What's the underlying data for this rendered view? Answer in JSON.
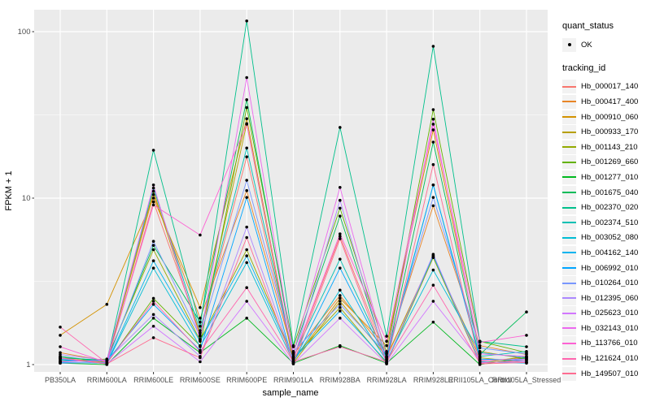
{
  "chart_data": {
    "type": "line",
    "title": "",
    "xlabel": "sample_name",
    "ylabel": "FPKM + 1",
    "yscale": "log10",
    "panel_bg": "#EBEBEB",
    "grid_color": "#FFFFFF",
    "tick_label_color": "#4D4D4D",
    "point_color": "#000000",
    "ylim": [
      0.9,
      135
    ],
    "yticks": [
      {
        "v": 1,
        "label": "1"
      },
      {
        "v": 10,
        "label": "10"
      },
      {
        "v": 100,
        "label": "100"
      }
    ],
    "minor_ticks": [
      3.1623,
      31.6228
    ],
    "categories": [
      "PB350LA",
      "RRIM600LA",
      "RRIM600LE",
      "RRIM600SE",
      "RRIM600PE",
      "RRIM901LA",
      "RRIM928BA",
      "RRIM928LA",
      "RRIM928LE",
      "RRII105LA_Control",
      "RRII105LA_Stressed"
    ],
    "legend": {
      "quant_status_title": "quant_status",
      "quant_status_items": [
        {
          "label": "OK",
          "symbol": "point"
        }
      ],
      "tracking_title": "tracking_id"
    },
    "series": [
      {
        "id": "Hb_000017_140",
        "color": "#F8766D",
        "values": [
          1.1,
          1.02,
          9.5,
          1.55,
          17.7,
          1.08,
          5.9,
          1.1,
          4.5,
          1.05,
          1.1
        ]
      },
      {
        "id": "Hb_000417_400",
        "color": "#E88526",
        "values": [
          1.18,
          1.05,
          10.5,
          1.9,
          11.1,
          1.15,
          2.6,
          1.2,
          9.0,
          1.3,
          1.15
        ]
      },
      {
        "id": "Hb_000910_060",
        "color": "#D39200",
        "values": [
          1.5,
          2.3,
          10.0,
          2.2,
          30.0,
          1.05,
          2.5,
          1.3,
          25.7,
          1.2,
          1.08
        ]
      },
      {
        "id": "Hb_000933_170",
        "color": "#B79F00",
        "values": [
          1.12,
          1.03,
          11.0,
          1.5,
          28.0,
          1.02,
          2.4,
          1.12,
          4.4,
          1.1,
          1.03
        ]
      },
      {
        "id": "Hb_001143_210",
        "color": "#93AA00",
        "values": [
          1.05,
          1.08,
          4.9,
          1.4,
          4.9,
          1.1,
          2.2,
          1.02,
          4.4,
          1.02,
          1.12
        ]
      },
      {
        "id": "Hb_001269_660",
        "color": "#64B200",
        "values": [
          1.08,
          1.02,
          2.5,
          1.3,
          35.0,
          1.28,
          8.7,
          1.18,
          34.0,
          1.38,
          1.18
        ]
      },
      {
        "id": "Hb_001277_010",
        "color": "#00B81F",
        "values": [
          1.02,
          1.0,
          1.9,
          1.18,
          1.9,
          1.02,
          1.3,
          1.02,
          1.8,
          1.0,
          1.1
        ]
      },
      {
        "id": "Hb_001675_040",
        "color": "#00BC59",
        "values": [
          1.1,
          1.06,
          5.2,
          1.8,
          39.0,
          1.18,
          7.8,
          1.08,
          21.7,
          1.15,
          2.07
        ]
      },
      {
        "id": "Hb_002370_020",
        "color": "#00C08B",
        "values": [
          1.12,
          1.04,
          19.4,
          1.7,
          116.0,
          1.3,
          26.6,
          1.48,
          81.7,
          1.38,
          1.28
        ]
      },
      {
        "id": "Hb_002374_510",
        "color": "#00C0B4",
        "values": [
          1.04,
          1.07,
          11.5,
          1.6,
          20.0,
          1.12,
          4.3,
          1.1,
          12.0,
          1.12,
          1.2
        ]
      },
      {
        "id": "Hb_003052_080",
        "color": "#00BDD4",
        "values": [
          1.08,
          1.01,
          3.8,
          1.28,
          4.1,
          1.04,
          2.8,
          1.06,
          3.7,
          1.18,
          1.1
        ]
      },
      {
        "id": "Hb_004162_140",
        "color": "#00B4EF",
        "values": [
          1.03,
          1.02,
          4.2,
          1.38,
          4.5,
          1.08,
          2.1,
          1.04,
          4.5,
          1.04,
          1.02
        ]
      },
      {
        "id": "Hb_006992_010",
        "color": "#00A6FF",
        "values": [
          1.06,
          1.05,
          2.3,
          1.22,
          10.1,
          1.03,
          3.8,
          1.07,
          12.0,
          1.08,
          1.06
        ]
      },
      {
        "id": "Hb_010264_010",
        "color": "#7997FF",
        "values": [
          1.02,
          1.03,
          5.5,
          1.48,
          12.8,
          1.2,
          2.3,
          1.16,
          10.1,
          1.26,
          1.16
        ]
      },
      {
        "id": "Hb_012395_060",
        "color": "#AC88FF",
        "values": [
          1.15,
          1.06,
          2.0,
          1.12,
          6.7,
          1.06,
          9.7,
          1.03,
          4.6,
          1.03,
          1.04
        ]
      },
      {
        "id": "Hb_025623_010",
        "color": "#D277FF",
        "values": [
          1.09,
          1.01,
          1.7,
          1.04,
          2.4,
          1.01,
          1.9,
          1.01,
          2.4,
          1.06,
          1.08
        ]
      },
      {
        "id": "Hb_032143_010",
        "color": "#EC69EF",
        "values": [
          1.04,
          1.06,
          12.0,
          1.42,
          53.0,
          1.17,
          11.6,
          1.12,
          29.8,
          1.16,
          1.12
        ]
      },
      {
        "id": "Hb_113766_010",
        "color": "#FD61D3",
        "values": [
          1.28,
          1.03,
          9.1,
          6.0,
          27.8,
          1.1,
          6.1,
          1.38,
          27.8,
          1.36,
          1.5
        ]
      },
      {
        "id": "Hb_121624_010",
        "color": "#FF65AE",
        "values": [
          1.68,
          1.02,
          2.4,
          1.2,
          2.9,
          1.04,
          1.28,
          1.04,
          3.0,
          1.02,
          1.06
        ]
      },
      {
        "id": "Hb_149507_010",
        "color": "#FF6C91",
        "values": [
          1.1,
          1.01,
          1.45,
          1.1,
          5.8,
          1.02,
          5.7,
          1.02,
          15.9,
          1.01,
          1.03
        ]
      }
    ]
  }
}
